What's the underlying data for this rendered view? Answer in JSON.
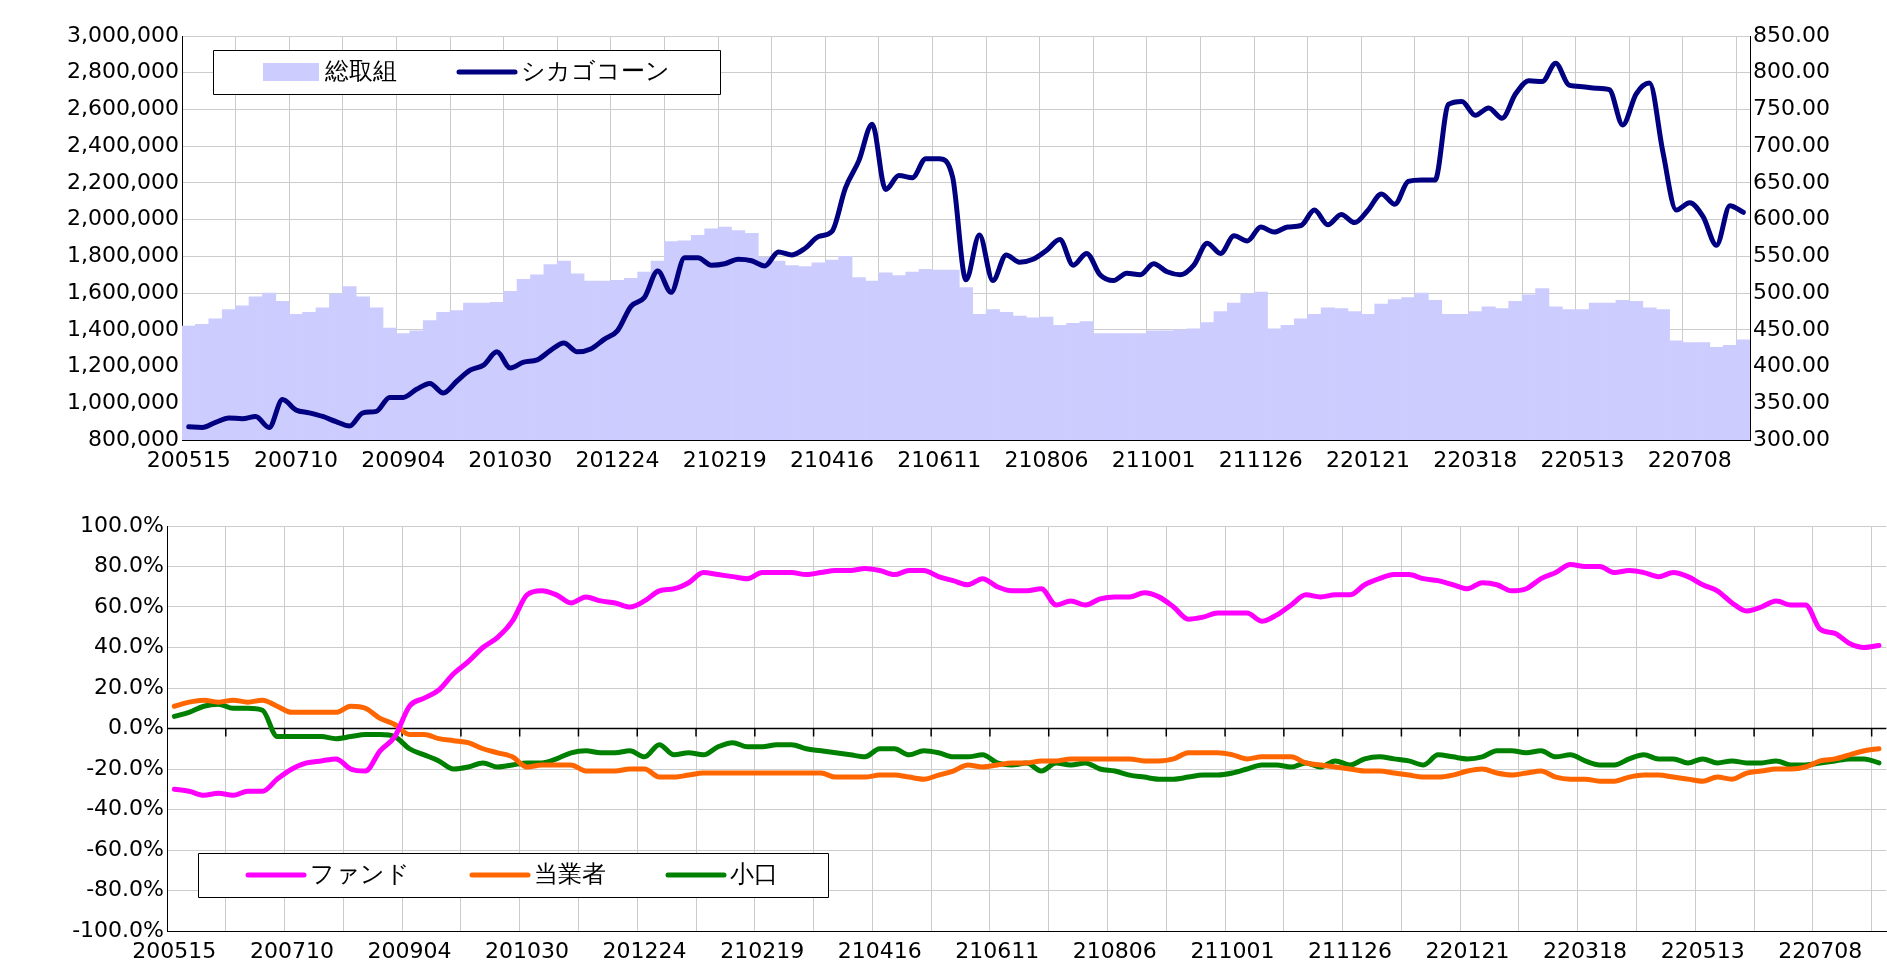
{
  "chart_data": [
    {
      "type": "bar",
      "categories": [
        "200515",
        null,
        null,
        null,
        null,
        null,
        null,
        null,
        "200710",
        null,
        null,
        null,
        null,
        null,
        null,
        null,
        "200904",
        null,
        null,
        null,
        null,
        null,
        null,
        null,
        "201030",
        null,
        null,
        null,
        null,
        null,
        null,
        null,
        "201224",
        null,
        null,
        null,
        null,
        null,
        null,
        null,
        "210219",
        null,
        null,
        null,
        null,
        null,
        null,
        null,
        "210416",
        null,
        null,
        null,
        null,
        null,
        null,
        null,
        "210611",
        null,
        null,
        null,
        null,
        null,
        null,
        null,
        "210806",
        null,
        null,
        null,
        null,
        null,
        null,
        null,
        "211001",
        null,
        null,
        null,
        null,
        null,
        null,
        null,
        "211126",
        null,
        null,
        null,
        null,
        null,
        null,
        null,
        "220121",
        null,
        null,
        null,
        null,
        null,
        null,
        null,
        "220318",
        null,
        null,
        null,
        null,
        null,
        null,
        null,
        "220513",
        null,
        null,
        null,
        null,
        null,
        null,
        null,
        "220708",
        null,
        null,
        null,
        null
      ],
      "series": [
        {
          "name": "総取組",
          "type": "bar",
          "color": "#ccccff",
          "values": [
            1420000,
            1430000,
            1460000,
            1510000,
            1530000,
            1580000,
            1600000,
            1555000,
            1485000,
            1495000,
            1520000,
            1595000,
            1635000,
            1580000,
            1520000,
            1410000,
            1380000,
            1395000,
            1450000,
            1495000,
            1505000,
            1545000,
            1545000,
            1550000,
            1610000,
            1675000,
            1700000,
            1755000,
            1775000,
            1705000,
            1665000,
            1665000,
            1670000,
            1680000,
            1715000,
            1775000,
            1880000,
            1885000,
            1915000,
            1950000,
            1960000,
            1940000,
            1925000,
            1795000,
            1775000,
            1750000,
            1745000,
            1765000,
            1780000,
            1800000,
            1685000,
            1665000,
            1710000,
            1695000,
            1715000,
            1730000,
            1725000,
            1725000,
            1630000,
            1485000,
            1510000,
            1495000,
            1475000,
            1465000,
            1470000,
            1425000,
            1435000,
            1445000,
            1380000,
            1380000,
            1380000,
            1380000,
            1395000,
            1395000,
            1400000,
            1405000,
            1440000,
            1500000,
            1545000,
            1595000,
            1605000,
            1405000,
            1425000,
            1460000,
            1485000,
            1520000,
            1515000,
            1500000,
            1485000,
            1540000,
            1565000,
            1575000,
            1600000,
            1560000,
            1485000,
            1485000,
            1500000,
            1525000,
            1515000,
            1555000,
            1590000,
            1625000,
            1525000,
            1510000,
            1510000,
            1545000,
            1545000,
            1560000,
            1555000,
            1520000,
            1510000,
            1340000,
            1330000,
            1330000,
            1305000,
            1315000,
            1345000
          ]
        },
        {
          "name": "シカゴコーン",
          "type": "line",
          "axis": "y2",
          "color": "#000080",
          "values": [
            318,
            317,
            324,
            330,
            329,
            332,
            317,
            355,
            341,
            337,
            332,
            325,
            319,
            337,
            339,
            358,
            358,
            369,
            377,
            364,
            380,
            395,
            402,
            420,
            398,
            406,
            409,
            422,
            432,
            420,
            424,
            437,
            449,
            482,
            494,
            530,
            501,
            548,
            548,
            538,
            540,
            546,
            544,
            537,
            556,
            552,
            561,
            577,
            584,
            643,
            680,
            730,
            641,
            660,
            657,
            683,
            683,
            658,
            518,
            579,
            517,
            552,
            542,
            546,
            558,
            573,
            538,
            554,
            525,
            517,
            527,
            525,
            540,
            529,
            525,
            538,
            568,
            554,
            578,
            571,
            590,
            583,
            590,
            592,
            613,
            593,
            607,
            596,
            613,
            635,
            621,
            652,
            654,
            654,
            757,
            761,
            742,
            752,
            738,
            771,
            789,
            788,
            813,
            783,
            781,
            779,
            777,
            729,
            771,
            786,
            692,
            613,
            623,
            604,
            565,
            619,
            610
          ]
        }
      ],
      "ylim": [
        800000,
        3000000
      ],
      "yticks": [
        {
          "value": 800000,
          "label": "800,000"
        },
        {
          "value": 1000000,
          "label": "1,000,000"
        },
        {
          "value": 1200000,
          "label": "1,200,000"
        },
        {
          "value": 1400000,
          "label": "1,400,000"
        },
        {
          "value": 1600000,
          "label": "1,600,000"
        },
        {
          "value": 1800000,
          "label": "1,800,000"
        },
        {
          "value": 2000000,
          "label": "2,000,000"
        },
        {
          "value": 2200000,
          "label": "2,200,000"
        },
        {
          "value": 2400000,
          "label": "2,400,000"
        },
        {
          "value": 2600000,
          "label": "2,600,000"
        },
        {
          "value": 2800000,
          "label": "2,800,000"
        },
        {
          "value": 3000000,
          "label": "3,000,000"
        }
      ],
      "y2lim": [
        300,
        850
      ],
      "y2ticks": [
        {
          "value": 300,
          "label": "300.00"
        },
        {
          "value": 350,
          "label": "350.00"
        },
        {
          "value": 400,
          "label": "400.00"
        },
        {
          "value": 450,
          "label": "450.00"
        },
        {
          "value": 500,
          "label": "500.00"
        },
        {
          "value": 550,
          "label": "550.00"
        },
        {
          "value": 600,
          "label": "600.00"
        },
        {
          "value": 650,
          "label": "650.00"
        },
        {
          "value": 700,
          "label": "700.00"
        },
        {
          "value": 750,
          "label": "750.00"
        },
        {
          "value": 800,
          "label": "800.00"
        },
        {
          "value": 850,
          "label": "850.00"
        }
      ],
      "grid": true,
      "legend": "top left"
    },
    {
      "type": "line",
      "categories": [
        "200515",
        null,
        null,
        null,
        null,
        null,
        null,
        null,
        "200710",
        null,
        null,
        null,
        null,
        null,
        null,
        null,
        "200904",
        null,
        null,
        null,
        null,
        null,
        null,
        null,
        "201030",
        null,
        null,
        null,
        null,
        null,
        null,
        null,
        "201224",
        null,
        null,
        null,
        null,
        null,
        null,
        null,
        "210219",
        null,
        null,
        null,
        null,
        null,
        null,
        null,
        "210416",
        null,
        null,
        null,
        null,
        null,
        null,
        null,
        "210611",
        null,
        null,
        null,
        null,
        null,
        null,
        null,
        "210806",
        null,
        null,
        null,
        null,
        null,
        null,
        null,
        "211001",
        null,
        null,
        null,
        null,
        null,
        null,
        null,
        "211126",
        null,
        null,
        null,
        null,
        null,
        null,
        null,
        "220121",
        null,
        null,
        null,
        null,
        null,
        null,
        null,
        "220318",
        null,
        null,
        null,
        null,
        null,
        null,
        null,
        "220513",
        null,
        null,
        null,
        null,
        null,
        null,
        null,
        "220708",
        null,
        null,
        null,
        null
      ],
      "series": [
        {
          "name": "ファンド",
          "color": "#ff00ff",
          "values": [
            -30,
            -31,
            -33,
            -32,
            -33,
            -31,
            -31,
            -25,
            -20,
            -17,
            -16,
            -15,
            -20,
            -21,
            -11,
            -4,
            11,
            15,
            19,
            27,
            33,
            40,
            45,
            53,
            66,
            68,
            66,
            62,
            65,
            63,
            62,
            60,
            63,
            68,
            69,
            72,
            77,
            76,
            75,
            74,
            77,
            77,
            77,
            76,
            77,
            78,
            78,
            79,
            78,
            76,
            78,
            78,
            75,
            73,
            71,
            74,
            70,
            68,
            68,
            69,
            61,
            63,
            61,
            64,
            65,
            65,
            67,
            65,
            60,
            54,
            55,
            57,
            57,
            57,
            53,
            56,
            61,
            66,
            65,
            66,
            66,
            71,
            74,
            76,
            76,
            74,
            73,
            71,
            69,
            72,
            71,
            68,
            69,
            74,
            77,
            81,
            80,
            80,
            77,
            78,
            77,
            75,
            77,
            75,
            71,
            68,
            62,
            58,
            60,
            63,
            61,
            61,
            49,
            47,
            42,
            40,
            41
          ]
        },
        {
          "name": "当業者",
          "color": "#ff6600",
          "values": [
            11,
            13,
            14,
            13,
            14,
            13,
            14,
            11,
            8,
            8,
            8,
            8,
            11,
            10,
            5,
            2,
            -3,
            -3,
            -5,
            -6,
            -7,
            -10,
            -12,
            -14,
            -19,
            -18,
            -18,
            -18,
            -21,
            -21,
            -21,
            -20,
            -20,
            -24,
            -24,
            -23,
            -22,
            -22,
            -22,
            -22,
            -22,
            -22,
            -22,
            -22,
            -22,
            -24,
            -24,
            -24,
            -23,
            -23,
            -24,
            -25,
            -23,
            -21,
            -18,
            -19,
            -18,
            -17,
            -17,
            -16,
            -16,
            -15,
            -15,
            -15,
            -15,
            -15,
            -16,
            -16,
            -15,
            -12,
            -12,
            -12,
            -13,
            -15,
            -14,
            -14,
            -14,
            -17,
            -18,
            -19,
            -20,
            -21,
            -21,
            -22,
            -23,
            -24,
            -24,
            -23,
            -21,
            -20,
            -22,
            -23,
            -22,
            -21,
            -24,
            -25,
            -25,
            -26,
            -26,
            -24,
            -23,
            -23,
            -24,
            -25,
            -26,
            -24,
            -25,
            -22,
            -21,
            -20,
            -20,
            -19,
            -16,
            -15,
            -13,
            -11,
            -10
          ]
        },
        {
          "name": "小口",
          "color": "#008000",
          "values": [
            6,
            8,
            11,
            12,
            10,
            10,
            9,
            -4,
            -4,
            -4,
            -4,
            -5,
            -4,
            -3,
            -3,
            -4,
            -10,
            -13,
            -16,
            -20,
            -19,
            -17,
            -19,
            -18,
            -17,
            -17,
            -15,
            -12,
            -11,
            -12,
            -12,
            -11,
            -14,
            -8,
            -13,
            -12,
            -13,
            -9,
            -7,
            -9,
            -9,
            -8,
            -8,
            -10,
            -11,
            -12,
            -13,
            -14,
            -10,
            -10,
            -13,
            -11,
            -12,
            -14,
            -14,
            -13,
            -17,
            -18,
            -17,
            -21,
            -17,
            -18,
            -17,
            -20,
            -21,
            -23,
            -24,
            -25,
            -25,
            -24,
            -23,
            -23,
            -22,
            -20,
            -18,
            -18,
            -19,
            -17,
            -19,
            -16,
            -18,
            -15,
            -14,
            -15,
            -16,
            -18,
            -13,
            -14,
            -15,
            -14,
            -11,
            -11,
            -12,
            -11,
            -14,
            -13,
            -16,
            -18,
            -18,
            -15,
            -13,
            -15,
            -15,
            -17,
            -15,
            -17,
            -16,
            -17,
            -17,
            -16,
            -18,
            -18,
            -17,
            -16,
            -15,
            -15,
            -17
          ]
        }
      ],
      "ylim": [
        -100,
        100
      ],
      "yticks": [
        {
          "value": -100,
          "label": "-100.0%"
        },
        {
          "value": -80,
          "label": "-80.0%"
        },
        {
          "value": -60,
          "label": "-60.0%"
        },
        {
          "value": -40,
          "label": "-40.0%"
        },
        {
          "value": -20,
          "label": "-20.0%"
        },
        {
          "value": 0,
          "label": "0.0%"
        },
        {
          "value": 20,
          "label": "20.0%"
        },
        {
          "value": 40,
          "label": "40.0%"
        },
        {
          "value": 60,
          "label": "60.0%"
        },
        {
          "value": 80,
          "label": "80.0%"
        },
        {
          "value": 100,
          "label": "100.0%"
        }
      ],
      "grid": true,
      "legend": "bottom left",
      "marker": "none"
    }
  ]
}
